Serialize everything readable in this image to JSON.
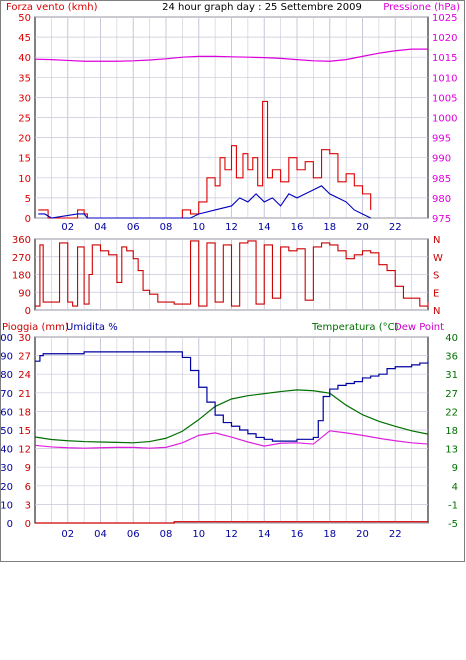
{
  "header": {
    "title": "24 hour graph day : 25 Settembre 2009",
    "left_axis_label": "Forza vento (kmh)",
    "right_axis_label": "Pressione (hPa)"
  },
  "wind_dir_panel": {
    "left_ticks": [
      "360",
      "270",
      "180",
      "90",
      "0"
    ],
    "right_ticks": [
      "N",
      "W",
      "S",
      "E",
      "N"
    ]
  },
  "bottom_panel": {
    "label_rain": "Pioggia (mm)",
    "label_humidity": "Umidita %",
    "label_temperature": "Temperatura (°C)",
    "label_dewpoint": "Dew Point"
  },
  "colors": {
    "wind": "#dd0000",
    "pressure": "#dd00dd",
    "gust_line": "#0000c0",
    "wind_dir": "#cc0000",
    "humidity": "#0000a0",
    "temperature": "#007000",
    "dewpoint": "#dd22dd",
    "rain": "#cc0000",
    "grid": "#c8c8d8"
  },
  "chart_data": [
    {
      "type": "line",
      "panel": "wind_pressure",
      "title": "24 hour graph day : 25 Settembre 2009",
      "xlabel": "",
      "x_ticks": [
        "02",
        "04",
        "06",
        "08",
        "10",
        "12",
        "14",
        "16",
        "18",
        "20",
        "22"
      ],
      "ylabel": "Forza vento (kmh)",
      "y_ticks": [
        "0",
        "5",
        "10",
        "15",
        "20",
        "25",
        "30",
        "35",
        "40",
        "45",
        "50"
      ],
      "ylim": [
        0,
        50
      ],
      "y2label": "Pressione (hPa)",
      "y2_ticks": [
        "975",
        "980",
        "985",
        "990",
        "995",
        "1000",
        "1005",
        "1010",
        "1015",
        "1020",
        "1025"
      ],
      "y2lim": [
        975,
        1025
      ],
      "grid": true,
      "series": [
        {
          "name": "Pressione (hPa)",
          "axis": "right",
          "x": [
            0,
            1,
            2,
            3,
            4,
            5,
            6,
            7,
            8,
            9,
            10,
            11,
            12,
            13,
            14,
            15,
            16,
            17,
            18,
            19,
            20,
            21,
            22,
            23,
            24
          ],
          "values": [
            1014.5,
            1014.4,
            1014.2,
            1014.0,
            1014.0,
            1014.0,
            1014.1,
            1014.3,
            1014.6,
            1015.0,
            1015.2,
            1015.2,
            1015.1,
            1015.0,
            1014.9,
            1014.7,
            1014.4,
            1014.1,
            1014.0,
            1014.4,
            1015.2,
            1016.0,
            1016.6,
            1017.0,
            1017.0
          ]
        },
        {
          "name": "Forza vento (kmh)",
          "axis": "left",
          "x": [
            0.2,
            0.5,
            0.8,
            2.6,
            3.0,
            3.2,
            9.0,
            9.5,
            10.0,
            10.5,
            11.0,
            11.3,
            11.6,
            12.0,
            12.3,
            12.7,
            13.0,
            13.3,
            13.6,
            13.9,
            14.2,
            14.5,
            15.0,
            15.5,
            16.0,
            16.5,
            17.0,
            17.5,
            18.0,
            18.5,
            19.0,
            19.5,
            20.0,
            20.5
          ],
          "values": [
            2,
            2,
            0,
            2,
            1,
            0,
            2,
            1,
            4,
            10,
            8,
            15,
            12,
            18,
            10,
            16,
            12,
            15,
            8,
            29,
            10,
            12,
            9,
            15,
            12,
            14,
            10,
            17,
            16,
            9,
            11,
            8,
            6,
            2
          ]
        },
        {
          "name": "",
          "axis": "left",
          "x": [
            0.2,
            0.6,
            1.0,
            2.6,
            3.0,
            3.2,
            9.5,
            10.0,
            11.0,
            12.0,
            12.5,
            13.0,
            13.5,
            14.0,
            14.5,
            15.0,
            15.5,
            16.0,
            16.5,
            17.0,
            17.5,
            18.0,
            18.5,
            19.0,
            19.5,
            20.0,
            20.5
          ],
          "values": [
            1,
            1,
            0,
            1,
            1,
            0,
            0,
            1,
            2,
            3,
            5,
            4,
            6,
            4,
            5,
            3,
            6,
            5,
            6,
            7,
            8,
            6,
            5,
            4,
            2,
            1,
            0
          ]
        }
      ]
    },
    {
      "type": "line",
      "panel": "wind_direction",
      "xlabel": "",
      "ylabel": "",
      "y_ticks": [
        "360",
        "270",
        "180",
        "90",
        "0"
      ],
      "y2_ticks": [
        "N",
        "W",
        "S",
        "E",
        "N"
      ],
      "ylim": [
        0,
        360
      ],
      "grid": true,
      "series": [
        {
          "name": "",
          "x": [
            0.0,
            0.3,
            0.5,
            1.0,
            1.5,
            2.0,
            2.3,
            2.6,
            3.0,
            3.3,
            3.5,
            4.0,
            4.5,
            5.0,
            5.3,
            5.6,
            6.0,
            6.3,
            6.6,
            7.0,
            7.5,
            8.0,
            8.5,
            9.0,
            9.5,
            10.0,
            10.5,
            11.0,
            11.5,
            12.0,
            12.5,
            13.0,
            13.5,
            14.0,
            14.5,
            15.0,
            15.5,
            16.0,
            16.5,
            17.0,
            17.5,
            18.0,
            18.5,
            19.0,
            19.5,
            20.0,
            20.5,
            21.0,
            21.5,
            22.0,
            22.5,
            23.0,
            23.5,
            24.0
          ],
          "values": [
            20,
            330,
            40,
            40,
            340,
            40,
            20,
            320,
            30,
            180,
            330,
            300,
            280,
            140,
            320,
            300,
            260,
            200,
            100,
            80,
            40,
            40,
            30,
            30,
            350,
            20,
            340,
            40,
            330,
            20,
            340,
            350,
            30,
            330,
            60,
            320,
            300,
            310,
            50,
            320,
            340,
            330,
            300,
            260,
            280,
            300,
            290,
            230,
            200,
            120,
            60,
            60,
            20,
            40
          ]
        }
      ]
    },
    {
      "type": "line",
      "panel": "humidity_temperature",
      "xlabel": "",
      "x_ticks": [
        "02",
        "04",
        "06",
        "08",
        "10",
        "12",
        "14",
        "16",
        "18",
        "20",
        "22"
      ],
      "ylabel": "Pioggia (mm) / Umidita %",
      "y_ticks_rain": [
        "0",
        "3",
        "6",
        "9",
        "12",
        "15",
        "18",
        "21",
        "24",
        "27",
        "30"
      ],
      "y_ticks_humidity": [
        "0",
        "10",
        "20",
        "30",
        "40",
        "50",
        "60",
        "70",
        "80",
        "90",
        "100"
      ],
      "ylim": [
        0,
        100
      ],
      "y2label": "Temperatura (°C)",
      "y2_ticks": [
        "-5",
        "-1",
        "4",
        "9",
        "13",
        "18",
        "22",
        "27",
        "31",
        "36",
        "40"
      ],
      "y2lim": [
        -5,
        40
      ],
      "grid": true,
      "series": [
        {
          "name": "Umidita %",
          "axis": "left",
          "x": [
            0.0,
            0.3,
            0.5,
            1.0,
            2.0,
            3.0,
            4.0,
            5.0,
            6.0,
            7.0,
            8.0,
            8.5,
            9.0,
            9.5,
            10.0,
            10.5,
            11.0,
            11.5,
            12.0,
            12.5,
            13.0,
            13.5,
            14.0,
            14.5,
            15.0,
            15.5,
            16.0,
            16.5,
            17.0,
            17.3,
            17.6,
            18.0,
            18.5,
            19.0,
            19.5,
            20.0,
            20.5,
            21.0,
            21.5,
            22.0,
            22.5,
            23.0,
            23.5,
            24.0
          ],
          "values": [
            87,
            90,
            91,
            91,
            91,
            92,
            92,
            92,
            92,
            92,
            92,
            92,
            89,
            82,
            73,
            65,
            58,
            54,
            52,
            50,
            48,
            46,
            45,
            44,
            44,
            44,
            45,
            45,
            46,
            55,
            68,
            72,
            74,
            75,
            76,
            78,
            79,
            80,
            83,
            84,
            84,
            85,
            86,
            87
          ]
        },
        {
          "name": "Temperatura (°C)",
          "axis": "right",
          "x": [
            0,
            1,
            2,
            3,
            4,
            5,
            6,
            7,
            8,
            9,
            10,
            11,
            12,
            13,
            14,
            15,
            16,
            17,
            18,
            19,
            20,
            21,
            22,
            23,
            24
          ],
          "values": [
            15.8,
            15.2,
            14.9,
            14.7,
            14.6,
            14.5,
            14.4,
            14.7,
            15.5,
            17.2,
            20.0,
            23.2,
            25.0,
            25.8,
            26.3,
            26.8,
            27.2,
            27.0,
            26.4,
            23.5,
            21.2,
            19.6,
            18.4,
            17.3,
            16.5
          ]
        },
        {
          "name": "Dew Point",
          "axis": "right",
          "x": [
            0,
            1,
            2,
            3,
            4,
            5,
            6,
            7,
            8,
            9,
            10,
            11,
            12,
            13,
            14,
            15,
            16,
            17,
            18,
            19,
            20,
            21,
            22,
            23,
            24
          ],
          "values": [
            13.8,
            13.4,
            13.2,
            13.1,
            13.2,
            13.3,
            13.3,
            13.1,
            13.3,
            14.4,
            16.2,
            16.8,
            15.8,
            14.6,
            13.6,
            14.3,
            14.4,
            14.1,
            17.3,
            16.8,
            16.2,
            15.5,
            14.9,
            14.4,
            14.1
          ]
        },
        {
          "name": "Pioggia (mm)",
          "axis": "left_rain",
          "x": [
            0,
            8,
            8.5,
            24
          ],
          "values": [
            0.0,
            0.0,
            0.2,
            0.2
          ]
        }
      ]
    }
  ]
}
